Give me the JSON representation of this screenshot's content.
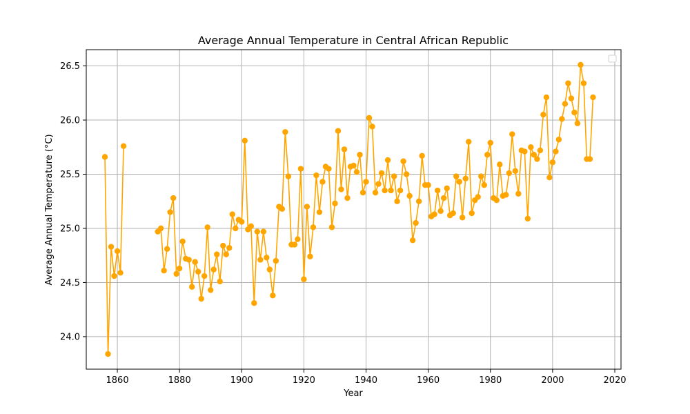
{
  "chart_data": {
    "type": "line",
    "title": "Average Annual Temperature in Central African Republic",
    "xlabel": "Year",
    "ylabel": "Average Annual Temperature (°C)",
    "xlim": [
      1850,
      2022
    ],
    "ylim": [
      23.7,
      26.65
    ],
    "xticks": [
      1860,
      1880,
      1900,
      1920,
      1940,
      1960,
      1980,
      2000,
      2020
    ],
    "yticks": [
      24.0,
      24.5,
      25.0,
      25.5,
      26.0,
      26.5
    ],
    "ytick_labels": [
      "24.0",
      "24.5",
      "25.0",
      "25.5",
      "26.0",
      "26.5"
    ],
    "grid": true,
    "legend": {
      "placement": "top-right",
      "entries": []
    },
    "series": [
      {
        "color": "#FFA500",
        "marker": "circle",
        "segments": [
          {
            "x": [
              1856,
              1857,
              1858,
              1859,
              1860,
              1861,
              1862
            ],
            "y": [
              25.66,
              23.84,
              24.83,
              24.56,
              24.79,
              24.59,
              25.76
            ]
          },
          {
            "x": [
              1873,
              1874,
              1875,
              1876,
              1877,
              1878,
              1879,
              1880,
              1881,
              1882,
              1883,
              1884,
              1885,
              1886,
              1887,
              1888,
              1889,
              1890,
              1891,
              1892,
              1893,
              1894,
              1895,
              1896,
              1897,
              1898,
              1899,
              1900,
              1901,
              1902,
              1903,
              1904,
              1905,
              1906,
              1907,
              1908,
              1909,
              1910,
              1911,
              1912,
              1913,
              1914,
              1915,
              1916,
              1917,
              1918,
              1919,
              1920,
              1921,
              1922,
              1923,
              1924,
              1925,
              1926,
              1927,
              1928,
              1929,
              1930,
              1931,
              1932,
              1933,
              1934,
              1935,
              1936,
              1937,
              1938,
              1939,
              1940,
              1941,
              1942,
              1943,
              1944,
              1945,
              1946,
              1947,
              1948,
              1949,
              1950,
              1951,
              1952,
              1953,
              1954,
              1955,
              1956,
              1957,
              1958,
              1959,
              1960,
              1961,
              1962,
              1963,
              1964,
              1965,
              1966,
              1967,
              1968,
              1969,
              1970,
              1971,
              1972,
              1973,
              1974,
              1975,
              1976,
              1977,
              1978,
              1979,
              1980,
              1981,
              1982,
              1983,
              1984,
              1985,
              1986,
              1987,
              1988,
              1989,
              1990,
              1991,
              1992,
              1993,
              1994,
              1995,
              1996,
              1997,
              1998,
              1999,
              2000,
              2001,
              2002,
              2003,
              2004,
              2005,
              2006,
              2007,
              2008,
              2009,
              2010,
              2011,
              2012,
              2013
            ],
            "y": [
              24.97,
              25.0,
              24.61,
              24.81,
              25.15,
              25.28,
              24.58,
              24.63,
              24.88,
              24.72,
              24.71,
              24.46,
              24.69,
              24.6,
              24.35,
              24.56,
              25.01,
              24.43,
              24.62,
              24.76,
              24.51,
              24.84,
              24.76,
              24.82,
              25.13,
              25.0,
              25.08,
              25.06,
              25.81,
              24.99,
              25.02,
              24.31,
              24.97,
              24.71,
              24.97,
              24.73,
              24.62,
              24.38,
              24.7,
              25.2,
              25.18,
              25.89,
              25.48,
              24.85,
              24.85,
              24.9,
              25.55,
              24.53,
              25.2,
              24.74,
              25.01,
              25.49,
              25.15,
              25.43,
              25.57,
              25.55,
              25.01,
              25.23,
              25.9,
              25.36,
              25.73,
              25.28,
              25.57,
              25.58,
              25.52,
              25.68,
              25.33,
              25.43,
              26.02,
              25.94,
              25.33,
              25.41,
              25.51,
              25.35,
              25.63,
              25.35,
              25.48,
              25.25,
              25.35,
              25.62,
              25.5,
              25.3,
              24.89,
              25.05,
              25.25,
              25.67,
              25.4,
              25.4,
              25.11,
              25.13,
              25.35,
              25.16,
              25.28,
              25.37,
              25.12,
              25.14,
              25.48,
              25.43,
              25.1,
              25.46,
              25.8,
              25.14,
              25.26,
              25.29,
              25.48,
              25.4,
              25.68,
              25.79,
              25.28,
              25.26,
              25.59,
              25.3,
              25.31,
              25.51,
              25.87,
              25.53,
              25.32,
              25.72,
              25.71,
              25.09,
              25.75,
              25.68,
              25.64,
              25.72,
              26.05,
              26.21,
              25.47,
              25.61,
              25.71,
              25.82,
              26.01,
              26.15,
              26.34,
              26.2,
              26.07,
              25.97,
              26.51,
              26.34,
              25.64,
              25.64,
              26.21
            ]
          }
        ]
      }
    ]
  }
}
